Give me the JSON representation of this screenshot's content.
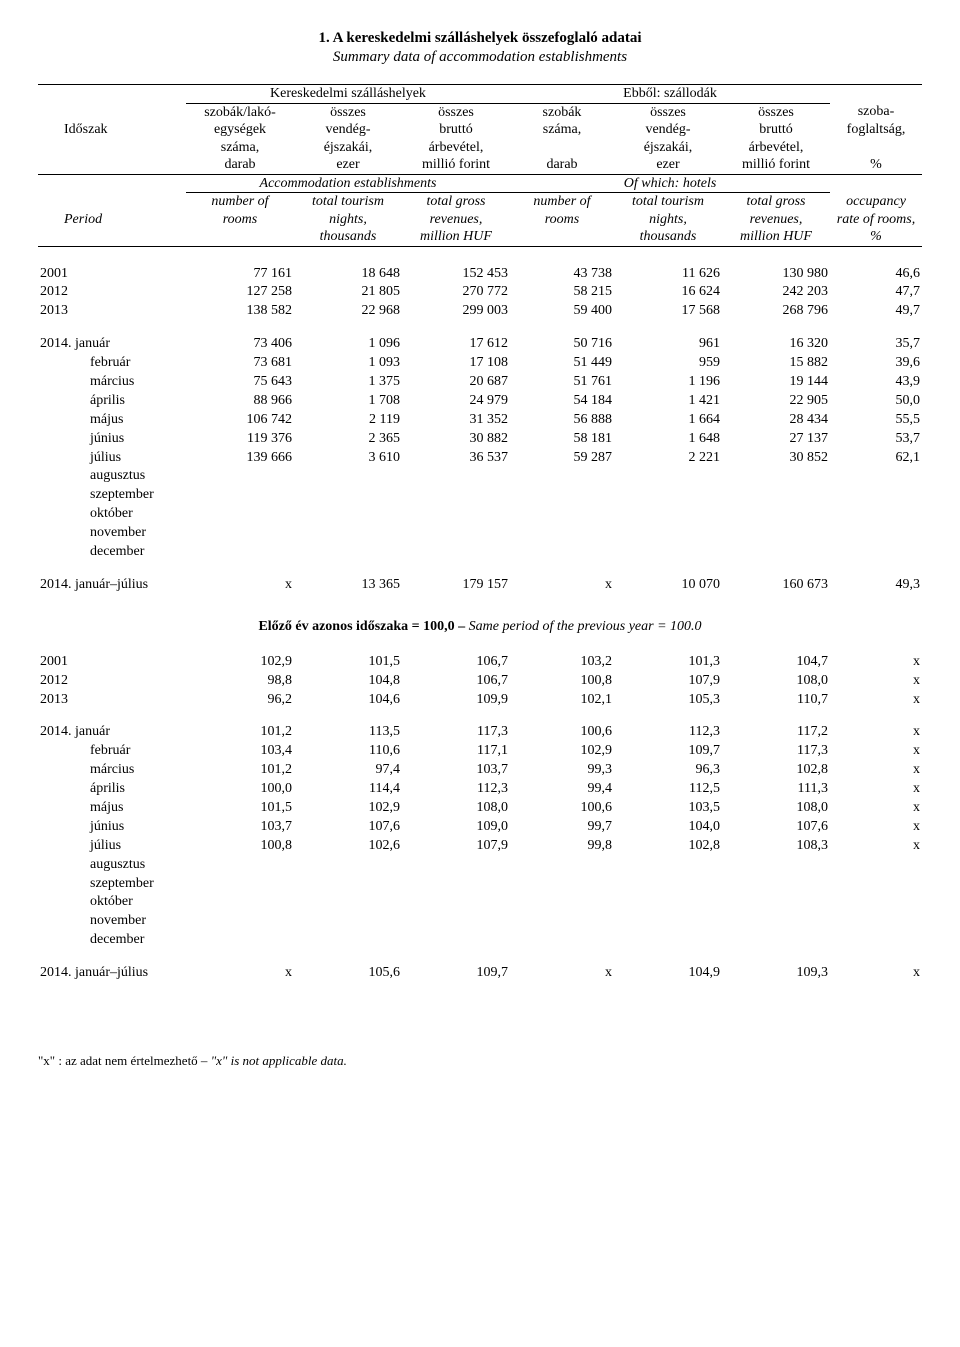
{
  "title": "1. A kereskedelmi szálláshelyek összefoglaló adatai",
  "subtitle": "Summary data of accommodation establishments",
  "header": {
    "grp1": "Kereskedelmi szálláshelyek",
    "grp2": "Ebből: szállodák",
    "hu": {
      "c0a": "",
      "c0b": "Időszak",
      "c0c": "",
      "c0d": "",
      "c1a": "szobák/lakó-",
      "c1b": "egységek",
      "c1c": "száma,",
      "c1d": "darab",
      "c2a": "összes",
      "c2b": "vendég-",
      "c2c": "éjszakái,",
      "c2d": "ezer",
      "c3a": "összes",
      "c3b": "bruttó",
      "c3c": "árbevétel,",
      "c3d": "millió forint",
      "c4a": "szobák",
      "c4b": "száma,",
      "c4c": "",
      "c4d": "darab",
      "c5a": "összes",
      "c5b": "vendég-",
      "c5c": "éjszakái,",
      "c5d": "ezer",
      "c6a": "összes",
      "c6b": "bruttó",
      "c6c": "árbevétel,",
      "c6d": "millió forint",
      "c7a": "szoba-",
      "c7b": "foglaltság,",
      "c7c": "",
      "c7d": "%"
    },
    "en_grp1": "Accommodation establishments",
    "en_grp2": "Of which: hotels",
    "en": {
      "c0a": "",
      "c0b": "Period",
      "c0c": "",
      "c1a": "number of",
      "c1b": "rooms",
      "c1c": "",
      "c2a": "total tourism",
      "c2b": "nights,",
      "c2c": "thousands",
      "c3a": "total gross",
      "c3b": "revenues,",
      "c3c": "million HUF",
      "c4a": "number of",
      "c4b": "rooms",
      "c4c": "",
      "c5a": "total tourism",
      "c5b": "nights,",
      "c5c": "thousands",
      "c6a": "total gross",
      "c6b": "revenues,",
      "c6c": "million HUF",
      "c7a": "occupancy",
      "c7b": "rate of rooms,",
      "c7c": "%"
    }
  },
  "section_mid_hu": "Előző év azonos időszaka = 100,0 – ",
  "section_mid_en": "Same period of the previous year = 100.0",
  "colwidths": {
    "c0": "148px",
    "c1": "108px",
    "c2": "108px",
    "c3": "108px",
    "c4": "104px",
    "c5": "108px",
    "c6": "108px",
    "c7": "92px"
  },
  "rows1": [
    {
      "lbl": "2001",
      "c1": "77 161",
      "c2": "18 648",
      "c3": "152 453",
      "c4": "43 738",
      "c5": "11 626",
      "c6": "130 980",
      "c7": "46,6"
    },
    {
      "lbl": "2012",
      "c1": "127 258",
      "c2": "21 805",
      "c3": "270 772",
      "c4": "58 215",
      "c5": "16 624",
      "c6": "242 203",
      "c7": "47,7"
    },
    {
      "lbl": "2013",
      "c1": "138 582",
      "c2": "22 968",
      "c3": "299 003",
      "c4": "59 400",
      "c5": "17 568",
      "c6": "268 796",
      "c7": "49,7"
    }
  ],
  "rows2_year": "2014.",
  "rows2": [
    {
      "lbl": "január",
      "c1": "73 406",
      "c2": "1 096",
      "c3": "17 612",
      "c4": "50 716",
      "c5": "961",
      "c6": "16 320",
      "c7": "35,7"
    },
    {
      "lbl": "február",
      "c1": "73 681",
      "c2": "1 093",
      "c3": "17 108",
      "c4": "51 449",
      "c5": "959",
      "c6": "15 882",
      "c7": "39,6"
    },
    {
      "lbl": "március",
      "c1": "75 643",
      "c2": "1 375",
      "c3": "20 687",
      "c4": "51 761",
      "c5": "1 196",
      "c6": "19 144",
      "c7": "43,9"
    },
    {
      "lbl": "április",
      "c1": "88 966",
      "c2": "1 708",
      "c3": "24 979",
      "c4": "54 184",
      "c5": "1 421",
      "c6": "22 905",
      "c7": "50,0"
    },
    {
      "lbl": "május",
      "c1": "106 742",
      "c2": "2 119",
      "c3": "31 352",
      "c4": "56 888",
      "c5": "1 664",
      "c6": "28 434",
      "c7": "55,5"
    },
    {
      "lbl": "június",
      "c1": "119 376",
      "c2": "2 365",
      "c3": "30 882",
      "c4": "58 181",
      "c5": "1 648",
      "c6": "27 137",
      "c7": "53,7"
    },
    {
      "lbl": "július",
      "c1": "139 666",
      "c2": "3 610",
      "c3": "36 537",
      "c4": "59 287",
      "c5": "2 221",
      "c6": "30 852",
      "c7": "62,1"
    },
    {
      "lbl": "augusztus"
    },
    {
      "lbl": "szeptember"
    },
    {
      "lbl": "október"
    },
    {
      "lbl": "november"
    },
    {
      "lbl": "december"
    }
  ],
  "rows3": {
    "lbl": "2014.  január–július",
    "c1": "x",
    "c2": "13 365",
    "c3": "179 157",
    "c4": "x",
    "c5": "10 070",
    "c6": "160 673",
    "c7": "49,3"
  },
  "rows4": [
    {
      "lbl": "2001",
      "c1": "102,9",
      "c2": "101,5",
      "c3": "106,7",
      "c4": "103,2",
      "c5": "101,3",
      "c6": "104,7",
      "c7": "x"
    },
    {
      "lbl": "2012",
      "c1": "98,8",
      "c2": "104,8",
      "c3": "106,7",
      "c4": "100,8",
      "c5": "107,9",
      "c6": "108,0",
      "c7": "x"
    },
    {
      "lbl": "2013",
      "c1": "96,2",
      "c2": "104,6",
      "c3": "109,9",
      "c4": "102,1",
      "c5": "105,3",
      "c6": "110,7",
      "c7": "x"
    }
  ],
  "rows5": [
    {
      "lbl": "január",
      "c1": "101,2",
      "c2": "113,5",
      "c3": "117,3",
      "c4": "100,6",
      "c5": "112,3",
      "c6": "117,2",
      "c7": "x"
    },
    {
      "lbl": "február",
      "c1": "103,4",
      "c2": "110,6",
      "c3": "117,1",
      "c4": "102,9",
      "c5": "109,7",
      "c6": "117,3",
      "c7": "x"
    },
    {
      "lbl": "március",
      "c1": "101,2",
      "c2": "97,4",
      "c3": "103,7",
      "c4": "99,3",
      "c5": "96,3",
      "c6": "102,8",
      "c7": "x"
    },
    {
      "lbl": "április",
      "c1": "100,0",
      "c2": "114,4",
      "c3": "112,3",
      "c4": "99,4",
      "c5": "112,5",
      "c6": "111,3",
      "c7": "x"
    },
    {
      "lbl": "május",
      "c1": "101,5",
      "c2": "102,9",
      "c3": "108,0",
      "c4": "100,6",
      "c5": "103,5",
      "c6": "108,0",
      "c7": "x"
    },
    {
      "lbl": "június",
      "c1": "103,7",
      "c2": "107,6",
      "c3": "109,0",
      "c4": "99,7",
      "c5": "104,0",
      "c6": "107,6",
      "c7": "x"
    },
    {
      "lbl": "július",
      "c1": "100,8",
      "c2": "102,6",
      "c3": "107,9",
      "c4": "99,8",
      "c5": "102,8",
      "c6": "108,3",
      "c7": "x"
    },
    {
      "lbl": "augusztus"
    },
    {
      "lbl": "szeptember"
    },
    {
      "lbl": "október"
    },
    {
      "lbl": "november"
    },
    {
      "lbl": "december"
    }
  ],
  "rows6": {
    "lbl": "2014.  január–július",
    "c1": "x",
    "c2": "105,6",
    "c3": "109,7",
    "c4": "x",
    "c5": "104,9",
    "c6": "109,3",
    "c7": "x"
  },
  "footnote": "\"x\" : az adat nem értelmezhető – \"x\" is not applicable data."
}
